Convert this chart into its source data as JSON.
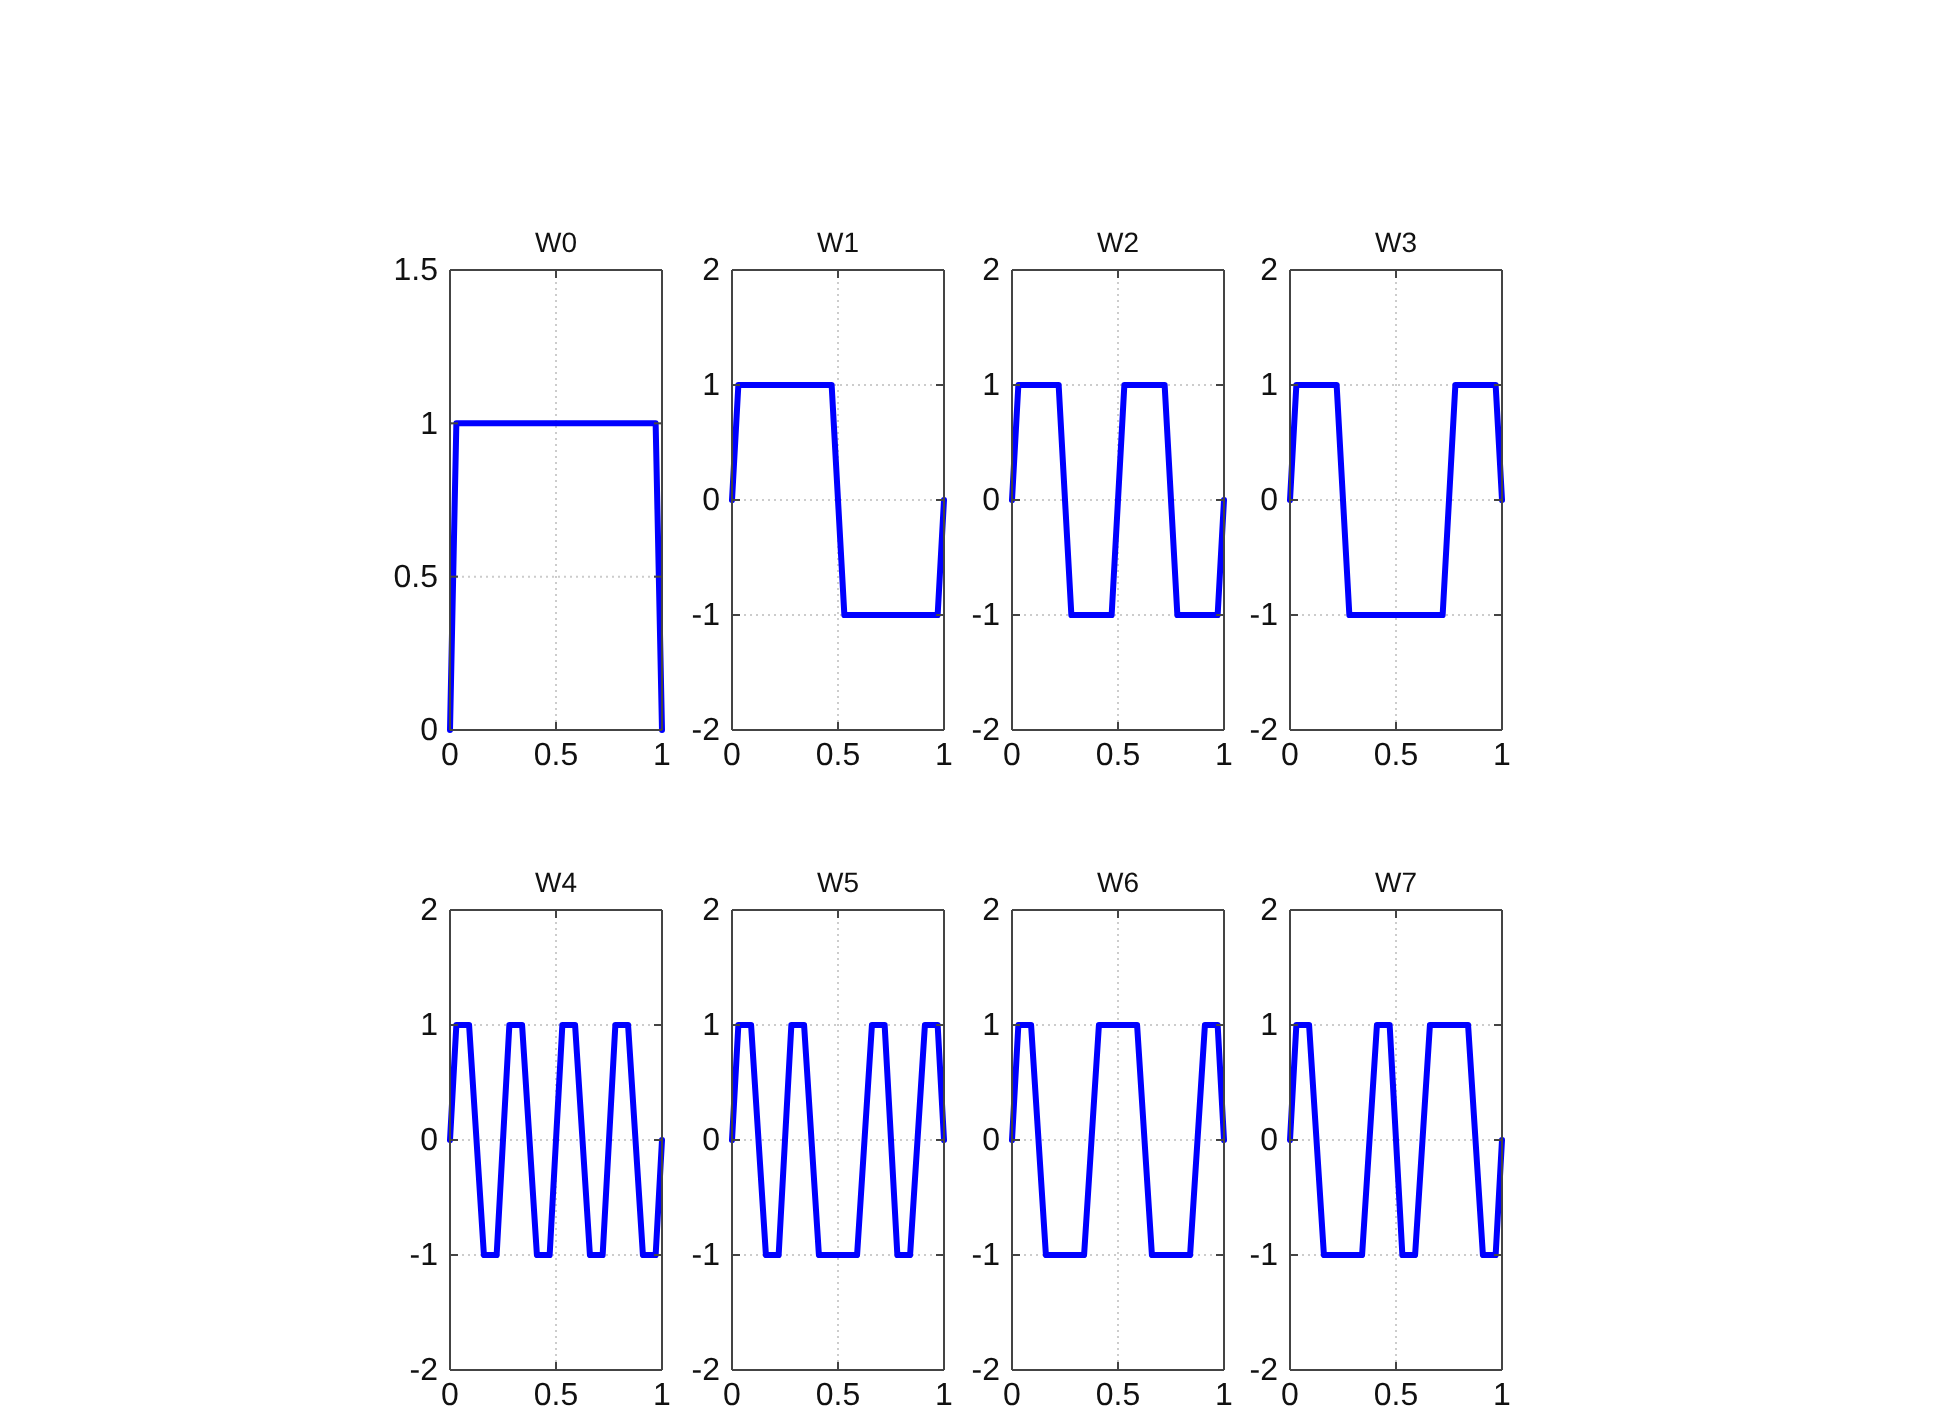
{
  "chart_data": [
    {
      "type": "line",
      "title": "W0",
      "x": [
        0,
        0.03,
        0.97,
        1
      ],
      "series": [
        {
          "color": "#0000ff",
          "values": [
            0,
            1,
            1,
            0
          ]
        }
      ],
      "xlim": [
        0,
        1
      ],
      "xticks": [
        0,
        0.5,
        1
      ],
      "ylim": [
        0,
        1.5
      ],
      "yticks": [
        0,
        0.5,
        1,
        1.5
      ],
      "grid": true
    },
    {
      "type": "line",
      "title": "W1",
      "x": [
        0,
        0.03,
        0.47,
        0.53,
        0.97,
        1
      ],
      "series": [
        {
          "color": "#0000ff",
          "values": [
            0,
            1,
            1,
            -1,
            -1,
            0
          ]
        }
      ],
      "xlim": [
        0,
        1
      ],
      "xticks": [
        0,
        0.5,
        1
      ],
      "ylim": [
        -2,
        2
      ],
      "yticks": [
        -2,
        -1,
        0,
        1,
        2
      ],
      "grid": true
    },
    {
      "type": "line",
      "title": "W2",
      "x": [
        0,
        0.03,
        0.22,
        0.28,
        0.47,
        0.53,
        0.72,
        0.78,
        0.97,
        1
      ],
      "series": [
        {
          "color": "#0000ff",
          "values": [
            0,
            1,
            1,
            -1,
            -1,
            1,
            1,
            -1,
            -1,
            0
          ]
        }
      ],
      "xlim": [
        0,
        1
      ],
      "xticks": [
        0,
        0.5,
        1
      ],
      "ylim": [
        -2,
        2
      ],
      "yticks": [
        -2,
        -1,
        0,
        1,
        2
      ],
      "grid": true
    },
    {
      "type": "line",
      "title": "W3",
      "x": [
        0,
        0.03,
        0.22,
        0.28,
        0.72,
        0.78,
        0.97,
        1
      ],
      "series": [
        {
          "color": "#0000ff",
          "values": [
            0,
            1,
            1,
            -1,
            -1,
            1,
            1,
            0
          ]
        }
      ],
      "xlim": [
        0,
        1
      ],
      "xticks": [
        0,
        0.5,
        1
      ],
      "ylim": [
        -2,
        2
      ],
      "yticks": [
        -2,
        -1,
        0,
        1,
        2
      ],
      "grid": true
    },
    {
      "type": "line",
      "title": "W4",
      "x": [
        0,
        0.03,
        0.09,
        0.16,
        0.22,
        0.28,
        0.34,
        0.41,
        0.47,
        0.53,
        0.59,
        0.66,
        0.72,
        0.78,
        0.84,
        0.91,
        0.97,
        1
      ],
      "series": [
        {
          "color": "#0000ff",
          "values": [
            0,
            1,
            1,
            -1,
            -1,
            1,
            1,
            -1,
            -1,
            1,
            1,
            -1,
            -1,
            1,
            1,
            -1,
            -1,
            0
          ]
        }
      ],
      "xlim": [
        0,
        1
      ],
      "xticks": [
        0,
        0.5,
        1
      ],
      "ylim": [
        -2,
        2
      ],
      "yticks": [
        -2,
        -1,
        0,
        1,
        2
      ],
      "grid": true
    },
    {
      "type": "line",
      "title": "W5",
      "x": [
        0,
        0.03,
        0.09,
        0.16,
        0.22,
        0.28,
        0.34,
        0.41,
        0.59,
        0.66,
        0.72,
        0.78,
        0.84,
        0.91,
        0.97,
        1
      ],
      "series": [
        {
          "color": "#0000ff",
          "values": [
            0,
            1,
            1,
            -1,
            -1,
            1,
            1,
            -1,
            -1,
            1,
            1,
            -1,
            -1,
            1,
            1,
            0
          ]
        }
      ],
      "xlim": [
        0,
        1
      ],
      "xticks": [
        0,
        0.5,
        1
      ],
      "ylim": [
        -2,
        2
      ],
      "yticks": [
        -2,
        -1,
        0,
        1,
        2
      ],
      "grid": true
    },
    {
      "type": "line",
      "title": "W6",
      "x": [
        0,
        0.03,
        0.09,
        0.16,
        0.34,
        0.41,
        0.59,
        0.66,
        0.84,
        0.91,
        0.97,
        1
      ],
      "series": [
        {
          "color": "#0000ff",
          "values": [
            0,
            1,
            1,
            -1,
            -1,
            1,
            1,
            -1,
            -1,
            1,
            1,
            0
          ]
        }
      ],
      "xlim": [
        0,
        1
      ],
      "xticks": [
        0,
        0.5,
        1
      ],
      "ylim": [
        -2,
        2
      ],
      "yticks": [
        -2,
        -1,
        0,
        1,
        2
      ],
      "grid": true
    },
    {
      "type": "line",
      "title": "W7",
      "x": [
        0,
        0.03,
        0.09,
        0.16,
        0.34,
        0.41,
        0.47,
        0.53,
        0.59,
        0.66,
        0.84,
        0.91,
        0.97,
        1
      ],
      "series": [
        {
          "color": "#0000ff",
          "values": [
            0,
            1,
            1,
            -1,
            -1,
            1,
            1,
            -1,
            -1,
            1,
            1,
            -1,
            -1,
            0
          ]
        }
      ],
      "xlim": [
        0,
        1
      ],
      "xticks": [
        0,
        0.5,
        1
      ],
      "ylim": [
        -2,
        2
      ],
      "yticks": [
        -2,
        -1,
        0,
        1,
        2
      ],
      "grid": true
    }
  ]
}
